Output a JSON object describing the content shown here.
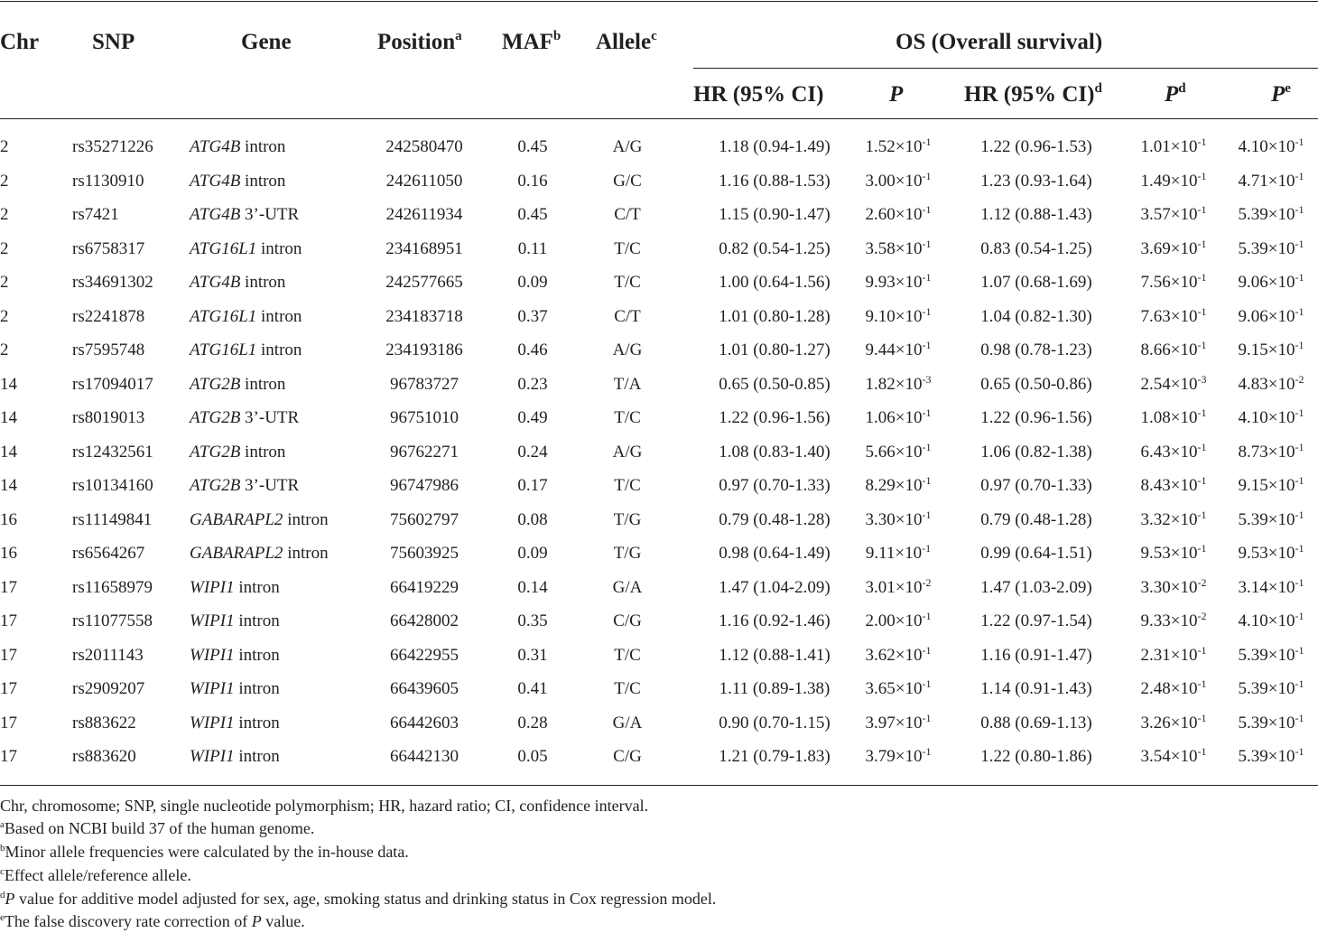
{
  "table": {
    "headers": {
      "chr": "Chr",
      "snp": "SNP",
      "gene": "Gene",
      "position": "Position",
      "position_sup": "a",
      "maf": "MAF",
      "maf_sup": "b",
      "allele": "Allele",
      "allele_sup": "c",
      "os_group": "OS (Overall survival)",
      "hr1": "HR (95% CI)",
      "p1": "P",
      "hr2": "HR (95% CI)",
      "hr2_sup": "d",
      "p2": "P",
      "p2_sup": "d",
      "p3": "P",
      "p3_sup": "e"
    },
    "rows": [
      {
        "chr": "2",
        "snp": "rs35271226",
        "gene": "ATG4B",
        "region": " intron",
        "position": "242580470",
        "maf": "0.45",
        "allele": "A/G",
        "hr1": "1.18 (0.94-1.49)",
        "p1": "1.52×10",
        "p1_exp": "-1",
        "hr2": "1.22 (0.96-1.53)",
        "p2": "1.01×10",
        "p2_exp": "-1",
        "p3": "4.10×10",
        "p3_exp": "-1"
      },
      {
        "chr": "2",
        "snp": "rs1130910",
        "gene": "ATG4B",
        "region": " intron",
        "position": "242611050",
        "maf": "0.16",
        "allele": "G/C",
        "hr1": "1.16 (0.88-1.53)",
        "p1": "3.00×10",
        "p1_exp": "-1",
        "hr2": "1.23 (0.93-1.64)",
        "p2": "1.49×10",
        "p2_exp": "-1",
        "p3": "4.71×10",
        "p3_exp": "-1"
      },
      {
        "chr": "2",
        "snp": "rs7421",
        "gene": "ATG4B",
        "region": " 3’-UTR",
        "position": "242611934",
        "maf": "0.45",
        "allele": "C/T",
        "hr1": "1.15 (0.90-1.47)",
        "p1": "2.60×10",
        "p1_exp": "-1",
        "hr2": "1.12 (0.88-1.43)",
        "p2": "3.57×10",
        "p2_exp": "-1",
        "p3": "5.39×10",
        "p3_exp": "-1"
      },
      {
        "chr": "2",
        "snp": "rs6758317",
        "gene": "ATG16L1",
        "region": " intron",
        "position": "234168951",
        "maf": "0.11",
        "allele": "T/C",
        "hr1": "0.82 (0.54-1.25)",
        "p1": "3.58×10",
        "p1_exp": "-1",
        "hr2": "0.83 (0.54-1.25)",
        "p2": "3.69×10",
        "p2_exp": "-1",
        "p3": "5.39×10",
        "p3_exp": "-1"
      },
      {
        "chr": "2",
        "snp": "rs34691302",
        "gene": "ATG4B",
        "region": " intron",
        "position": "242577665",
        "maf": "0.09",
        "allele": "T/C",
        "hr1": "1.00 (0.64-1.56)",
        "p1": "9.93×10",
        "p1_exp": "-1",
        "hr2": "1.07 (0.68-1.69)",
        "p2": "7.56×10",
        "p2_exp": "-1",
        "p3": "9.06×10",
        "p3_exp": "-1"
      },
      {
        "chr": "2",
        "snp": "rs2241878",
        "gene": "ATG16L1",
        "region": " intron",
        "position": "234183718",
        "maf": "0.37",
        "allele": "C/T",
        "hr1": "1.01 (0.80-1.28)",
        "p1": "9.10×10",
        "p1_exp": "-1",
        "hr2": "1.04 (0.82-1.30)",
        "p2": "7.63×10",
        "p2_exp": "-1",
        "p3": "9.06×10",
        "p3_exp": "-1"
      },
      {
        "chr": "2",
        "snp": "rs7595748",
        "gene": "ATG16L1",
        "region": " intron",
        "position": "234193186",
        "maf": "0.46",
        "allele": "A/G",
        "hr1": "1.01 (0.80-1.27)",
        "p1": "9.44×10",
        "p1_exp": "-1",
        "hr2": "0.98 (0.78-1.23)",
        "p2": "8.66×10",
        "p2_exp": "-1",
        "p3": "9.15×10",
        "p3_exp": "-1"
      },
      {
        "chr": "14",
        "snp": "rs17094017",
        "gene": "ATG2B",
        "region": " intron",
        "position": "96783727",
        "maf": "0.23",
        "allele": "T/A",
        "hr1": "0.65 (0.50-0.85)",
        "p1": "1.82×10",
        "p1_exp": "-3",
        "hr2": "0.65 (0.50-0.86)",
        "p2": "2.54×10",
        "p2_exp": "-3",
        "p3": "4.83×10",
        "p3_exp": "-2"
      },
      {
        "chr": "14",
        "snp": "rs8019013",
        "gene": "ATG2B",
        "region": " 3’-UTR",
        "position": "96751010",
        "maf": "0.49",
        "allele": "T/C",
        "hr1": "1.22 (0.96-1.56)",
        "p1": "1.06×10",
        "p1_exp": "-1",
        "hr2": "1.22 (0.96-1.56)",
        "p2": "1.08×10",
        "p2_exp": "-1",
        "p3": "4.10×10",
        "p3_exp": "-1"
      },
      {
        "chr": "14",
        "snp": "rs12432561",
        "gene": "ATG2B",
        "region": " intron",
        "position": "96762271",
        "maf": "0.24",
        "allele": "A/G",
        "hr1": "1.08 (0.83-1.40)",
        "p1": "5.66×10",
        "p1_exp": "-1",
        "hr2": "1.06 (0.82-1.38)",
        "p2": "6.43×10",
        "p2_exp": "-1",
        "p3": "8.73×10",
        "p3_exp": "-1"
      },
      {
        "chr": "14",
        "snp": "rs10134160",
        "gene": "ATG2B",
        "region": " 3’-UTR",
        "position": "96747986",
        "maf": "0.17",
        "allele": "T/C",
        "hr1": "0.97 (0.70-1.33)",
        "p1": "8.29×10",
        "p1_exp": "-1",
        "hr2": "0.97 (0.70-1.33)",
        "p2": "8.43×10",
        "p2_exp": "-1",
        "p3": "9.15×10",
        "p3_exp": "-1"
      },
      {
        "chr": "16",
        "snp": "rs11149841",
        "gene": "GABARAPL2",
        "region": " intron",
        "position": "75602797",
        "maf": "0.08",
        "allele": "T/G",
        "hr1": "0.79 (0.48-1.28)",
        "p1": "3.30×10",
        "p1_exp": "-1",
        "hr2": "0.79 (0.48-1.28)",
        "p2": "3.32×10",
        "p2_exp": "-1",
        "p3": "5.39×10",
        "p3_exp": "-1"
      },
      {
        "chr": "16",
        "snp": "rs6564267",
        "gene": "GABARAPL2",
        "region": " intron",
        "position": "75603925",
        "maf": "0.09",
        "allele": "T/G",
        "hr1": "0.98 (0.64-1.49)",
        "p1": "9.11×10",
        "p1_exp": "-1",
        "hr2": "0.99 (0.64-1.51)",
        "p2": "9.53×10",
        "p2_exp": "-1",
        "p3": "9.53×10",
        "p3_exp": "-1"
      },
      {
        "chr": "17",
        "snp": "rs11658979",
        "gene": "WIPI1",
        "region": " intron",
        "position": "66419229",
        "maf": "0.14",
        "allele": "G/A",
        "hr1": "1.47 (1.04-2.09)",
        "p1": "3.01×10",
        "p1_exp": "-2",
        "hr2": "1.47 (1.03-2.09)",
        "p2": "3.30×10",
        "p2_exp": "-2",
        "p3": "3.14×10",
        "p3_exp": "-1"
      },
      {
        "chr": "17",
        "snp": "rs11077558",
        "gene": "WIPI1",
        "region": " intron",
        "position": "66428002",
        "maf": "0.35",
        "allele": "C/G",
        "hr1": "1.16 (0.92-1.46)",
        "p1": "2.00×10",
        "p1_exp": "-1",
        "hr2": "1.22 (0.97-1.54)",
        "p2": "9.33×10",
        "p2_exp": "-2",
        "p3": "4.10×10",
        "p3_exp": "-1"
      },
      {
        "chr": "17",
        "snp": "rs2011143",
        "gene": "WIPI1",
        "region": " intron",
        "position": "66422955",
        "maf": "0.31",
        "allele": "T/C",
        "hr1": "1.12 (0.88-1.41)",
        "p1": "3.62×10",
        "p1_exp": "-1",
        "hr2": "1.16 (0.91-1.47)",
        "p2": "2.31×10",
        "p2_exp": "-1",
        "p3": "5.39×10",
        "p3_exp": "-1"
      },
      {
        "chr": "17",
        "snp": "rs2909207",
        "gene": "WIPI1",
        "region": " intron",
        "position": "66439605",
        "maf": "0.41",
        "allele": "T/C",
        "hr1": "1.11 (0.89-1.38)",
        "p1": "3.65×10",
        "p1_exp": "-1",
        "hr2": "1.14 (0.91-1.43)",
        "p2": "2.48×10",
        "p2_exp": "-1",
        "p3": "5.39×10",
        "p3_exp": "-1"
      },
      {
        "chr": "17",
        "snp": "rs883622",
        "gene": "WIPI1",
        "region": " intron",
        "position": "66442603",
        "maf": "0.28",
        "allele": "G/A",
        "hr1": "0.90 (0.70-1.15)",
        "p1": "3.97×10",
        "p1_exp": "-1",
        "hr2": "0.88 (0.69-1.13)",
        "p2": "3.26×10",
        "p2_exp": "-1",
        "p3": "5.39×10",
        "p3_exp": "-1"
      },
      {
        "chr": "17",
        "snp": "rs883620",
        "gene": "WIPI1",
        "region": " intron",
        "position": "66442130",
        "maf": "0.05",
        "allele": "C/G",
        "hr1": "1.21 (0.79-1.83)",
        "p1": "3.79×10",
        "p1_exp": "-1",
        "hr2": "1.22 (0.80-1.86)",
        "p2": "3.54×10",
        "p2_exp": "-1",
        "p3": "5.39×10",
        "p3_exp": "-1"
      }
    ]
  },
  "footnotes": {
    "abbreviations": "Chr, chromosome; SNP, single nucleotide polymorphism; HR, hazard ratio; CI, confidence interval.",
    "a_mark": "a",
    "a_text": "Based on NCBI build 37 of the human genome.",
    "b_mark": "b",
    "b_text": "Minor allele frequencies were calculated by the in-house data.",
    "c_mark": "c",
    "c_text": "Effect allele/reference allele.",
    "d_mark": "d",
    "d_p": "P",
    "d_text": " value for additive model adjusted for sex, age, smoking status and drinking status in Cox regression model.",
    "e_mark": "e",
    "e_text_pre": "The false discovery rate correction of ",
    "e_p": "P",
    "e_text_post": " value."
  }
}
